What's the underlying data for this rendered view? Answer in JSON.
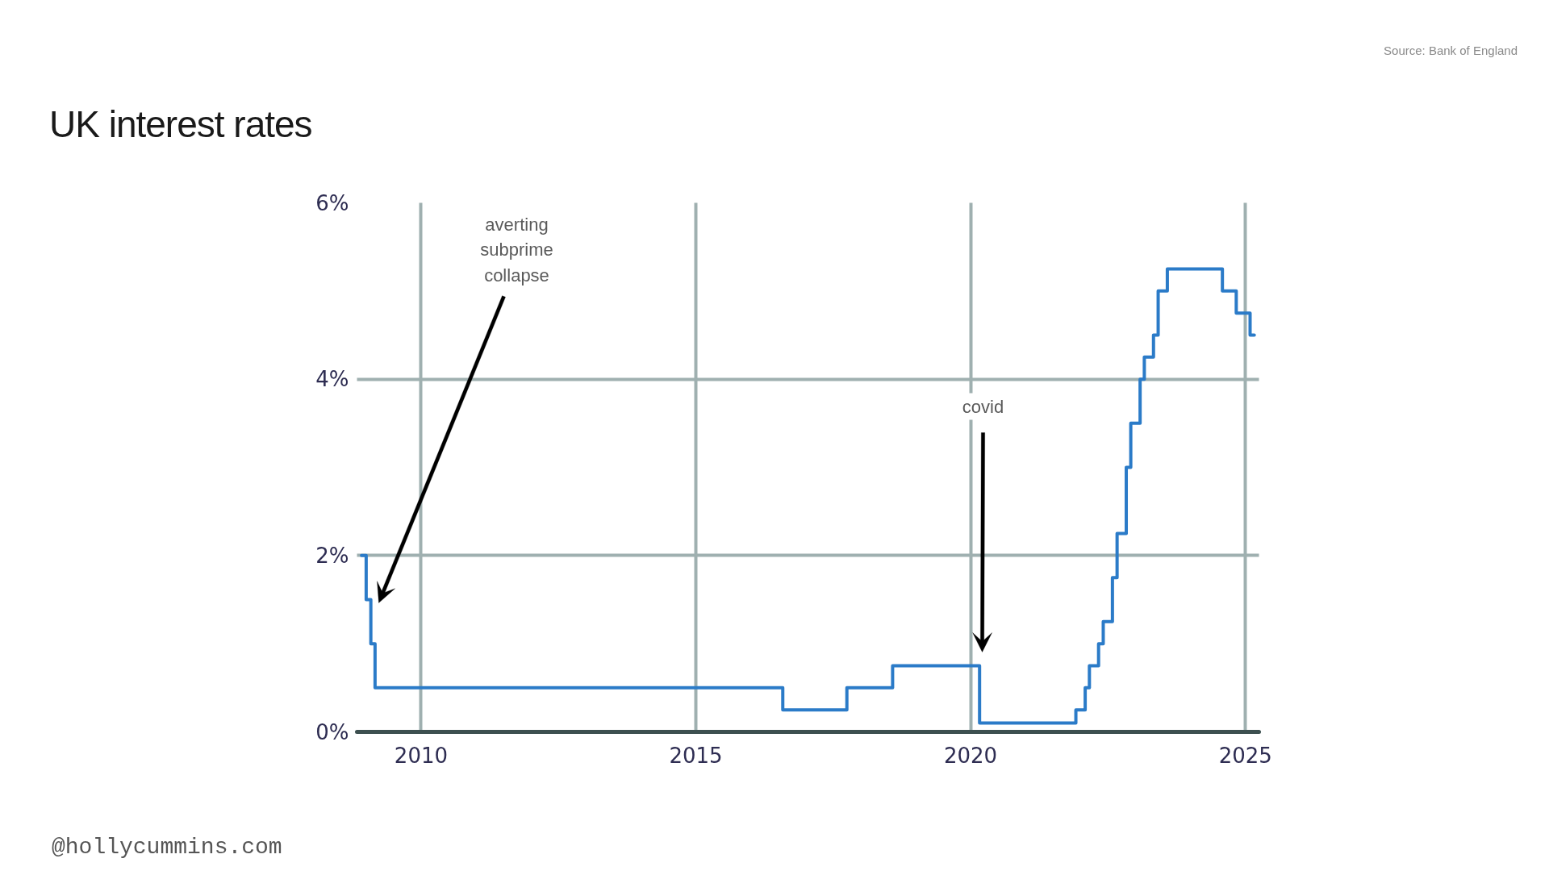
{
  "chart_data": {
    "type": "step",
    "title": "UK interest rates",
    "x": [
      "2008-12",
      "2009-01",
      "2009-02",
      "2009-03",
      "2016-08",
      "2017-10",
      "2018-08",
      "2020-03",
      "2021-12",
      "2022-02",
      "2022-03",
      "2022-05",
      "2022-06",
      "2022-08",
      "2022-09",
      "2022-11",
      "2022-12",
      "2023-02",
      "2023-03",
      "2023-05",
      "2023-06",
      "2023-08",
      "2024-08",
      "2024-11",
      "2025-02",
      "2025-03"
    ],
    "series": [
      {
        "color": "#2b7bc8",
        "values": [
          2,
          1.5,
          1,
          0.5,
          0.25,
          0.5,
          0.75,
          0.1,
          0.25,
          0.5,
          0.75,
          1,
          1.25,
          1.75,
          2.25,
          3,
          3.5,
          4,
          4.25,
          4.5,
          5,
          5.25,
          5,
          4.75,
          4.5,
          4.5
        ]
      }
    ],
    "xlim": [
      "2008-11",
      "2025-04"
    ],
    "xticks": [
      "2010",
      "2015",
      "2020",
      "2025"
    ],
    "ylim": [
      0,
      6
    ],
    "yticks": [
      {
        "value": 0,
        "label": "0%"
      },
      {
        "value": 2,
        "label": "2%"
      },
      {
        "value": 4,
        "label": "4%"
      },
      {
        "value": 6,
        "label": "6%"
      }
    ],
    "grid": true,
    "annotations": [
      "Source: Bank of England",
      "averting subprime collapse",
      "covid",
      "@hollycummins.com"
    ]
  }
}
